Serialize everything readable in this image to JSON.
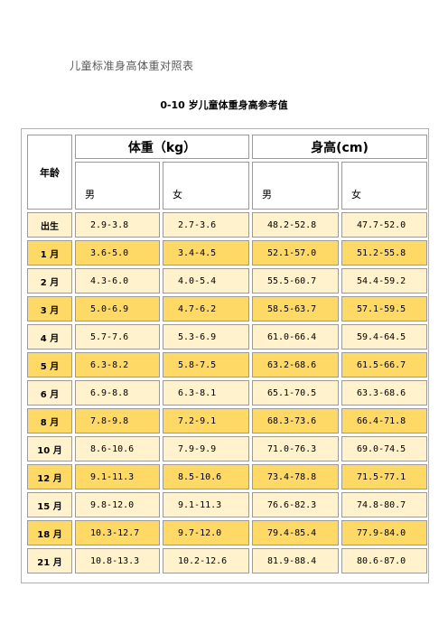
{
  "document": {
    "title": "儿童标准身高体重对照表",
    "table_title": "0-10 岁儿童体重身高参考值"
  },
  "table": {
    "age_header": "年龄",
    "weight_header": "体重（kg）",
    "height_header": "身高(cm)",
    "sub_headers": [
      "男",
      "女",
      "男",
      "女"
    ],
    "rows": [
      {
        "age": "出生",
        "wb": "2.9-3.8",
        "wg": "2.7-3.6",
        "hb": "48.2-52.8",
        "hg": "47.7-52.0"
      },
      {
        "age": "1 月",
        "wb": "3.6-5.0",
        "wg": "3.4-4.5",
        "hb": "52.1-57.0",
        "hg": "51.2-55.8"
      },
      {
        "age": "2 月",
        "wb": "4.3-6.0",
        "wg": "4.0-5.4",
        "hb": "55.5-60.7",
        "hg": "54.4-59.2"
      },
      {
        "age": "3 月",
        "wb": "5.0-6.9",
        "wg": "4.7-6.2",
        "hb": "58.5-63.7",
        "hg": "57.1-59.5"
      },
      {
        "age": "4 月",
        "wb": "5.7-7.6",
        "wg": "5.3-6.9",
        "hb": "61.0-66.4",
        "hg": "59.4-64.5"
      },
      {
        "age": "5 月",
        "wb": "6.3-8.2",
        "wg": "5.8-7.5",
        "hb": "63.2-68.6",
        "hg": "61.5-66.7"
      },
      {
        "age": "6 月",
        "wb": "6.9-8.8",
        "wg": "6.3-8.1",
        "hb": "65.1-70.5",
        "hg": "63.3-68.6"
      },
      {
        "age": "8 月",
        "wb": "7.8-9.8",
        "wg": "7.2-9.1",
        "hb": "68.3-73.6",
        "hg": "66.4-71.8"
      },
      {
        "age": "10 月",
        "wb": "8.6-10.6",
        "wg": "7.9-9.9",
        "hb": "71.0-76.3",
        "hg": "69.0-74.5"
      },
      {
        "age": "12 月",
        "wb": "9.1-11.3",
        "wg": "8.5-10.6",
        "hb": "73.4-78.8",
        "hg": "71.5-77.1"
      },
      {
        "age": "15 月",
        "wb": "9.8-12.0",
        "wg": "9.1-11.3",
        "hb": "76.6-82.3",
        "hg": "74.8-80.7"
      },
      {
        "age": "18 月",
        "wb": "10.3-12.7",
        "wg": "9.7-12.0",
        "hb": "79.4-85.4",
        "hg": "77.9-84.0"
      },
      {
        "age": "21 月",
        "wb": "10.8-13.3",
        "wg": "10.2-12.6",
        "hb": "81.9-88.4",
        "hg": "80.6-87.0"
      }
    ]
  }
}
